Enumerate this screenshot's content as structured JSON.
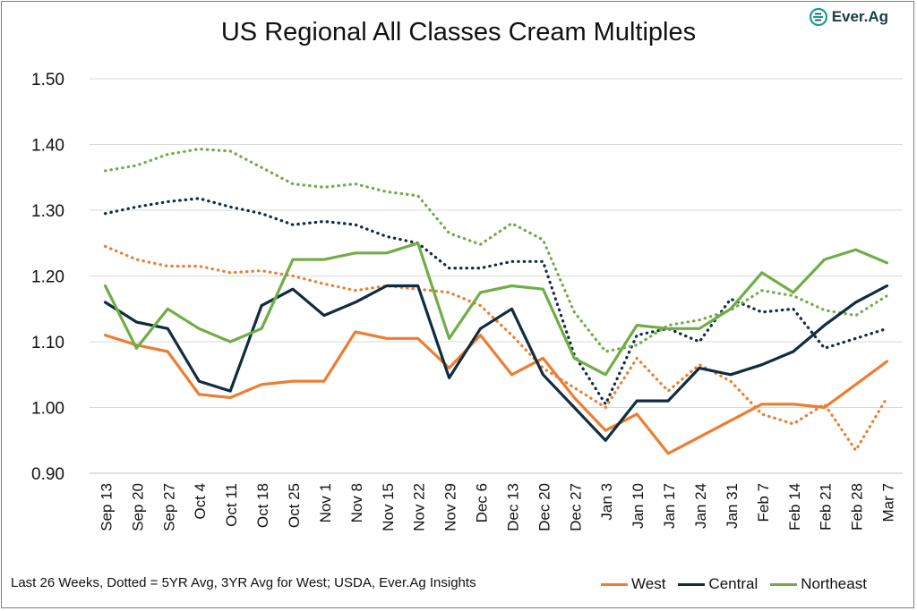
{
  "title": "US Regional All Classes Cream Multiples",
  "brand": "Ever.Ag",
  "footnote": "Last 26 Weeks, Dotted = 5YR Avg, 3YR Avg for West; USDA, Ever.Ag Insights",
  "chart_data": {
    "type": "line",
    "title": "US Regional All Classes Cream Multiples",
    "xlabel": "",
    "ylabel": "",
    "ylim": [
      0.9,
      1.5
    ],
    "yticks": [
      "0.90",
      "1.00",
      "1.10",
      "1.20",
      "1.30",
      "1.40",
      "1.50"
    ],
    "grid": true,
    "legend_position": "bottom-right",
    "categories": [
      "Sep 13",
      "Sep 20",
      "Sep 27",
      "Oct 4",
      "Oct 11",
      "Oct 18",
      "Oct 25",
      "Nov 1",
      "Nov 8",
      "Nov 15",
      "Nov 22",
      "Nov 29",
      "Dec 6",
      "Dec 13",
      "Dec 20",
      "Dec 27",
      "Jan 3",
      "Jan 10",
      "Jan 17",
      "Jan 24",
      "Jan 31",
      "Feb 7",
      "Feb 14",
      "Feb 21",
      "Feb 28",
      "Mar 7"
    ],
    "series": [
      {
        "name": "West",
        "style": "solid",
        "color": "#ed7d31",
        "values": [
          1.11,
          1.095,
          1.085,
          1.02,
          1.015,
          1.035,
          1.04,
          1.04,
          1.115,
          1.105,
          1.105,
          1.06,
          1.11,
          1.05,
          1.075,
          1.015,
          0.965,
          0.99,
          0.93,
          0.955,
          0.98,
          1.005,
          1.005,
          1.0,
          1.035,
          1.07
        ]
      },
      {
        "name": "Central",
        "style": "solid",
        "color": "#0f2d3f",
        "values": [
          1.16,
          1.13,
          1.12,
          1.04,
          1.025,
          1.155,
          1.18,
          1.14,
          1.16,
          1.185,
          1.185,
          1.045,
          1.12,
          1.15,
          1.05,
          1.0,
          0.95,
          1.01,
          1.01,
          1.06,
          1.05,
          1.065,
          1.085,
          1.125,
          1.16,
          1.185
        ]
      },
      {
        "name": "Northeast",
        "style": "solid",
        "color": "#70ad47",
        "values": [
          1.185,
          1.09,
          1.15,
          1.12,
          1.1,
          1.12,
          1.225,
          1.225,
          1.235,
          1.235,
          1.25,
          1.105,
          1.175,
          1.185,
          1.18,
          1.075,
          1.05,
          1.125,
          1.12,
          1.12,
          1.15,
          1.205,
          1.175,
          1.225,
          1.24,
          1.22
        ]
      },
      {
        "style": "dotted",
        "color": "#ed7d31",
        "values": [
          1.245,
          1.225,
          1.215,
          1.215,
          1.205,
          1.208,
          1.2,
          1.188,
          1.178,
          1.185,
          1.18,
          1.175,
          1.155,
          1.11,
          1.06,
          1.03,
          1.0,
          1.075,
          1.025,
          1.065,
          1.04,
          0.99,
          0.975,
          1.005,
          0.935,
          1.015
        ]
      },
      {
        "style": "dotted",
        "color": "#0f2d3f",
        "values": [
          1.295,
          1.305,
          1.313,
          1.318,
          1.305,
          1.295,
          1.278,
          1.283,
          1.278,
          1.26,
          1.25,
          1.212,
          1.212,
          1.222,
          1.222,
          1.08,
          1.005,
          1.11,
          1.12,
          1.1,
          1.165,
          1.145,
          1.15,
          1.09,
          1.105,
          1.12
        ]
      },
      {
        "style": "dotted",
        "color": "#70ad47",
        "values": [
          1.36,
          1.368,
          1.385,
          1.393,
          1.39,
          1.365,
          1.34,
          1.335,
          1.34,
          1.328,
          1.322,
          1.265,
          1.248,
          1.28,
          1.255,
          1.145,
          1.085,
          1.095,
          1.125,
          1.133,
          1.148,
          1.178,
          1.17,
          1.148,
          1.14,
          1.17
        ]
      }
    ]
  }
}
